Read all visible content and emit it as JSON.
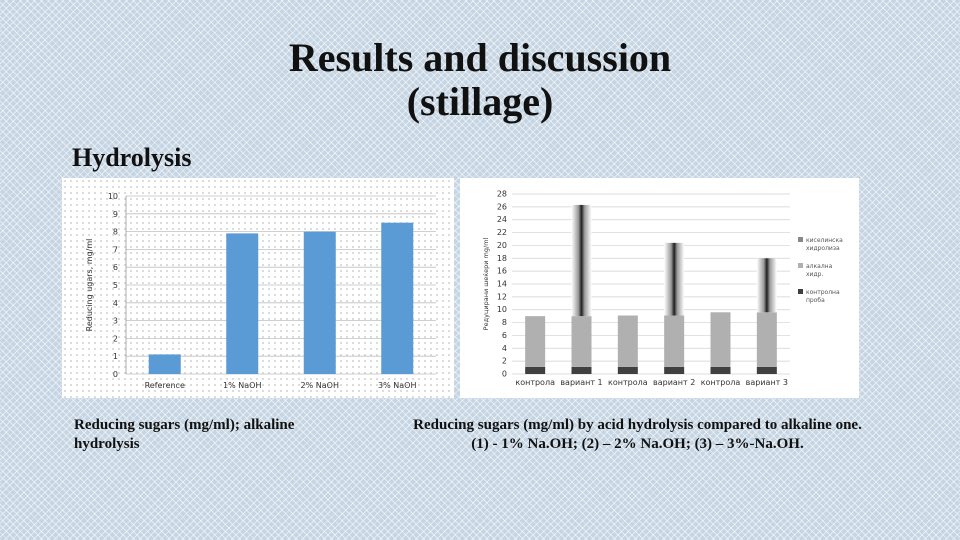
{
  "slide": {
    "title_line1": "Results and discussion",
    "title_line2": "(stillage)",
    "section_label": "Hydrolysis",
    "caption_left": "Reducing sugars (mg/ml); alkaline hydrolysis",
    "caption_right": "Reducing sugars (mg/ml) by acid hydrolysis compared to alkaline one. (1) - 1% Na.OH; (2) – 2% Na.OH; (3) – 3%-Na.OH."
  },
  "chart_data": [
    {
      "type": "bar",
      "ylabel": "Reducing ugars, mg/ml",
      "categories": [
        "Reference",
        "1% NaOH",
        "2% NaOH",
        "3% NaOH"
      ],
      "values": [
        1.1,
        7.9,
        8.0,
        8.5
      ],
      "ylim": [
        0,
        10
      ],
      "yticks": [
        0,
        1,
        2,
        3,
        4,
        5,
        6,
        7,
        8,
        9,
        10
      ],
      "grid": true,
      "color": "#5b9bd5"
    },
    {
      "type": "bar",
      "stacked": true,
      "ylabel": "Редуцирани шеќери mg/ml",
      "categories": [
        "контрола",
        "вариант 1",
        "контрола",
        "вариант 2",
        "контрола",
        "вариант 3"
      ],
      "ylim": [
        0,
        28
      ],
      "yticks": [
        0,
        2,
        4,
        6,
        8,
        10,
        12,
        14,
        16,
        18,
        20,
        22,
        24,
        26,
        28
      ],
      "legend_position": "right",
      "series": [
        {
          "name": "контролна проба",
          "values": [
            1.1,
            1.1,
            1.1,
            1.1,
            1.1,
            1.1
          ],
          "color": "#404040"
        },
        {
          "name": "алкална хидр.",
          "values": [
            7.9,
            7.9,
            8.0,
            8.0,
            8.5,
            8.5
          ],
          "color": "#b0b0b0"
        },
        {
          "name": "киселинска хидролиза",
          "values": [
            0,
            17.3,
            0,
            11.3,
            0,
            8.4
          ],
          "color": "#888888"
        }
      ],
      "legend": [
        "киселинска хидролиза",
        "алкална хидр.",
        "контролна проба"
      ]
    }
  ]
}
